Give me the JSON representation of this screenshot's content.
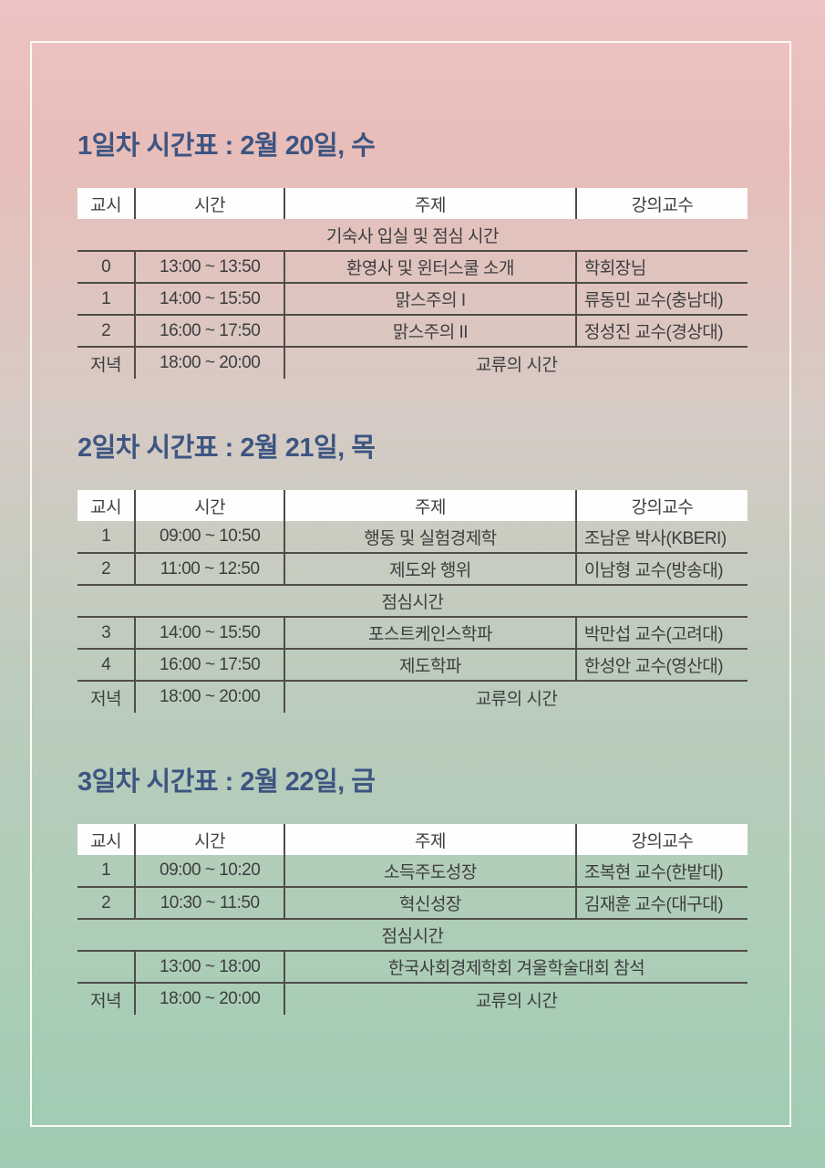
{
  "colors": {
    "gradient_top": "#edc3c3",
    "gradient_bottom": "#9fccb2",
    "title": "#3d5582",
    "table_line": "#504d49",
    "cell_text": "#3d3e40",
    "header_background": "#fefefe",
    "frame": "#fbfbf2"
  },
  "sections": [
    {
      "title": "1일차 시간표 : 2월 20일, 수",
      "headers": [
        "교시",
        "시간",
        "주제",
        "강의교수"
      ],
      "rows": [
        {
          "text": "기숙사 입실 및 점심 시간"
        },
        {
          "period": "0",
          "time": "13:00 ~ 13:50",
          "topic": "환영사 및 윈터스쿨 소개",
          "lecturer": "학회장님"
        },
        {
          "period": "1",
          "time": "14:00 ~ 15:50",
          "topic": "맑스주의 I",
          "lecturer": "류동민 교수(충남대)"
        },
        {
          "period": "2",
          "time": "16:00 ~ 17:50",
          "topic": "맑스주의 II",
          "lecturer": "정성진 교수(경상대)"
        },
        {
          "period": "저녁",
          "time": "18:00 ~ 20:00",
          "topic": "교류의 시간"
        }
      ]
    },
    {
      "title": "2일차 시간표 : 2월 21일, 목",
      "headers": [
        "교시",
        "시간",
        "주제",
        "강의교수"
      ],
      "rows": [
        {
          "period": "1",
          "time": "09:00 ~ 10:50",
          "topic": "행동 및 실험경제학",
          "lecturer": "조남운 박사(KBERI)"
        },
        {
          "period": "2",
          "time": "11:00 ~ 12:50",
          "topic": "제도와 행위",
          "lecturer": "이남형 교수(방송대)"
        },
        {
          "text": "점심시간"
        },
        {
          "period": "3",
          "time": "14:00 ~ 15:50",
          "topic": "포스트케인스학파",
          "lecturer": "박만섭 교수(고려대)"
        },
        {
          "period": "4",
          "time": "16:00 ~ 17:50",
          "topic": "제도학파",
          "lecturer": "한성안 교수(영산대)"
        },
        {
          "period": "저녁",
          "time": "18:00 ~ 20:00",
          "topic": "교류의 시간"
        }
      ]
    },
    {
      "title": "3일차 시간표 : 2월 22일, 금",
      "headers": [
        "교시",
        "시간",
        "주제",
        "강의교수"
      ],
      "rows": [
        {
          "period": "1",
          "time": "09:00 ~ 10:20",
          "topic": "소득주도성장",
          "lecturer": "조복현 교수(한밭대)"
        },
        {
          "period": "2",
          "time": "10:30 ~ 11:50",
          "topic": "혁신성장",
          "lecturer": "김재훈 교수(대구대)"
        },
        {
          "text": "점심시간"
        },
        {
          "period": "",
          "time": "13:00 ~ 18:00",
          "topic": "한국사회경제학회 겨울학술대회 참석"
        },
        {
          "period": "저녁",
          "time": "18:00 ~ 20:00",
          "topic": "교류의 시간"
        }
      ]
    }
  ]
}
